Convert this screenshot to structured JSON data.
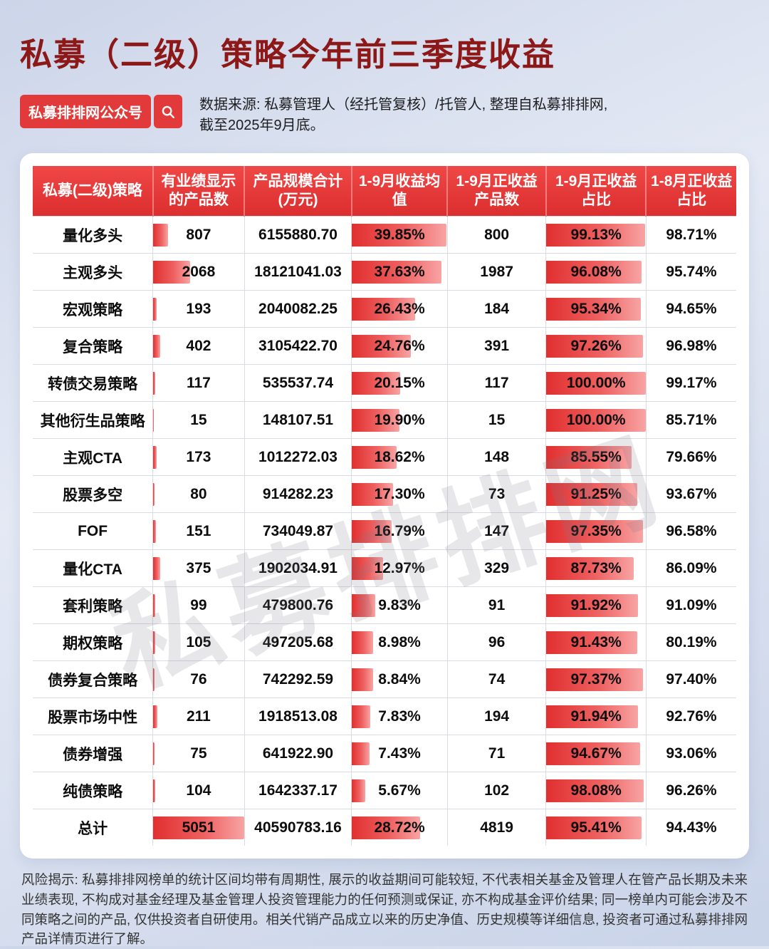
{
  "page": {
    "title": "私募（二级）策略今年前三季度收益",
    "badge": "私募排排网公众号",
    "search_icon": "search-icon",
    "source_line1": "数据来源: 私募管理人（经托管复核）/托管人, 整理自私募排排网,",
    "source_line2": "截至2025年9月底。",
    "watermark": "私募排排网",
    "disclaimer": "风险揭示: 私募排排网榜单的统计区间均带有周期性, 展示的收益期间可能较短, 不代表相关基金及管理人在管产品长期及未来业绩表现, 不构成对基金经理及基金管理人投资管理能力的任何预测或保证, 亦不构成基金评价结果; 同一榜单内可能会涉及不同策略之间的产品, 仅供投资者自研使用。相关代销产品成立以来的历史净值、历史规模等详细信息, 投资者可通过私募排排网产品详情页进行了解。"
  },
  "colors": {
    "header_red": "#e23a3a",
    "bar_red_start": "#e12f2f",
    "bar_red_end": "#f8a4a4",
    "title_red": "#8c1818"
  },
  "chart_data": {
    "type": "table",
    "title": "私募（二级）策略今年前三季度收益",
    "columns": [
      "私募(二级)策略",
      "有业绩显示的产品数",
      "产品规模合计(万元)",
      "1-9月收益均值",
      "1-9月正收益产品数",
      "1-9月正收益占比",
      "1-8月正收益占比"
    ],
    "bar_scales": {
      "count_max": 5051,
      "return_max": 40,
      "ratio_max": 100
    },
    "rows": [
      {
        "strategy": "量化多头",
        "count": 807,
        "scale": "6155880.70",
        "avg_return": 39.85,
        "positive_count": 800,
        "positive_ratio": 99.13,
        "aug_ratio": 98.71
      },
      {
        "strategy": "主观多头",
        "count": 2068,
        "scale": "18121041.03",
        "avg_return": 37.63,
        "positive_count": 1987,
        "positive_ratio": 96.08,
        "aug_ratio": 95.74
      },
      {
        "strategy": "宏观策略",
        "count": 193,
        "scale": "2040082.25",
        "avg_return": 26.43,
        "positive_count": 184,
        "positive_ratio": 95.34,
        "aug_ratio": 94.65
      },
      {
        "strategy": "复合策略",
        "count": 402,
        "scale": "3105422.70",
        "avg_return": 24.76,
        "positive_count": 391,
        "positive_ratio": 97.26,
        "aug_ratio": 96.98
      },
      {
        "strategy": "转债交易策略",
        "count": 117,
        "scale": "535537.74",
        "avg_return": 20.15,
        "positive_count": 117,
        "positive_ratio": 100.0,
        "aug_ratio": 99.17
      },
      {
        "strategy": "其他衍生品策略",
        "count": 15,
        "scale": "148107.51",
        "avg_return": 19.9,
        "positive_count": 15,
        "positive_ratio": 100.0,
        "aug_ratio": 85.71
      },
      {
        "strategy": "主观CTA",
        "count": 173,
        "scale": "1012272.03",
        "avg_return": 18.62,
        "positive_count": 148,
        "positive_ratio": 85.55,
        "aug_ratio": 79.66
      },
      {
        "strategy": "股票多空",
        "count": 80,
        "scale": "914282.23",
        "avg_return": 17.3,
        "positive_count": 73,
        "positive_ratio": 91.25,
        "aug_ratio": 93.67
      },
      {
        "strategy": "FOF",
        "count": 151,
        "scale": "734049.87",
        "avg_return": 16.79,
        "positive_count": 147,
        "positive_ratio": 97.35,
        "aug_ratio": 96.58
      },
      {
        "strategy": "量化CTA",
        "count": 375,
        "scale": "1902034.91",
        "avg_return": 12.97,
        "positive_count": 329,
        "positive_ratio": 87.73,
        "aug_ratio": 86.09
      },
      {
        "strategy": "套利策略",
        "count": 99,
        "scale": "479800.76",
        "avg_return": 9.83,
        "positive_count": 91,
        "positive_ratio": 91.92,
        "aug_ratio": 91.09
      },
      {
        "strategy": "期权策略",
        "count": 105,
        "scale": "497205.68",
        "avg_return": 8.98,
        "positive_count": 96,
        "positive_ratio": 91.43,
        "aug_ratio": 80.19
      },
      {
        "strategy": "债券复合策略",
        "count": 76,
        "scale": "742292.59",
        "avg_return": 8.84,
        "positive_count": 74,
        "positive_ratio": 97.37,
        "aug_ratio": 97.4
      },
      {
        "strategy": "股票市场中性",
        "count": 211,
        "scale": "1918513.08",
        "avg_return": 7.83,
        "positive_count": 194,
        "positive_ratio": 91.94,
        "aug_ratio": 92.76
      },
      {
        "strategy": "债券增强",
        "count": 75,
        "scale": "641922.90",
        "avg_return": 7.43,
        "positive_count": 71,
        "positive_ratio": 94.67,
        "aug_ratio": 93.06
      },
      {
        "strategy": "纯债策略",
        "count": 104,
        "scale": "1642337.17",
        "avg_return": 5.67,
        "positive_count": 102,
        "positive_ratio": 98.08,
        "aug_ratio": 96.26
      },
      {
        "strategy": "总计",
        "count": 5051,
        "scale": "40590783.16",
        "avg_return": 28.72,
        "positive_count": 4819,
        "positive_ratio": 95.41,
        "aug_ratio": 94.43
      }
    ]
  }
}
